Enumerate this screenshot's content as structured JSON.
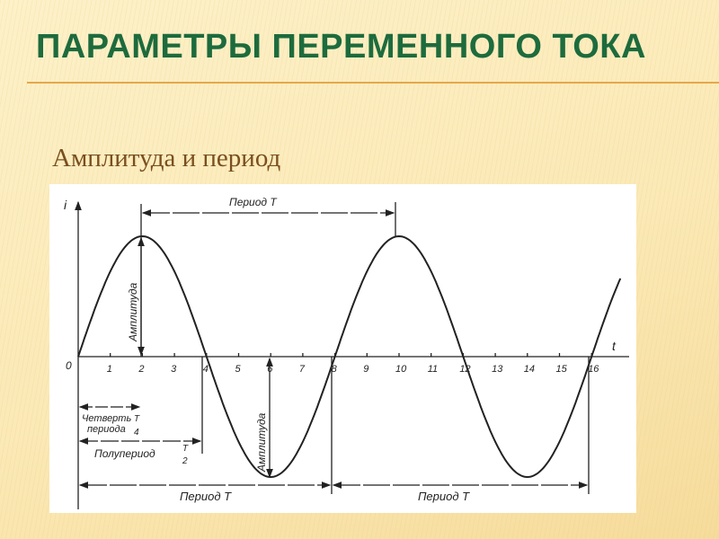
{
  "slide": {
    "title": "ПАРАМЕТРЫ  ПЕРЕМЕННОГО ТОКА",
    "subtitle": "Амплитуда и период",
    "title_color": "#1d6b3d",
    "subtitle_color": "#7a4f1e",
    "accent_line_color": "#e5a84a"
  },
  "figure": {
    "y_axis_label": "i",
    "x_axis_label": "t",
    "origin_label": "0",
    "ticks": [
      "1",
      "2",
      "3",
      "4",
      "5",
      "6",
      "7",
      "8",
      "9",
      "10",
      "11",
      "12",
      "13",
      "14",
      "15",
      "16"
    ],
    "period_top": "Период Т",
    "amplitude_up": "Амплитуда",
    "amplitude_down": "Амплитуда",
    "quarter_line1": "Четверть",
    "quarter_line2": "периода",
    "quarter_frac_num": "T",
    "quarter_frac_den": "4",
    "half": "Полупериод",
    "half_frac_num": "T",
    "half_frac_den": "2",
    "period_1": "Период Т",
    "period_2": "Период Т",
    "wave": {
      "period_units": 8,
      "x_range": [
        0,
        17
      ]
    }
  }
}
